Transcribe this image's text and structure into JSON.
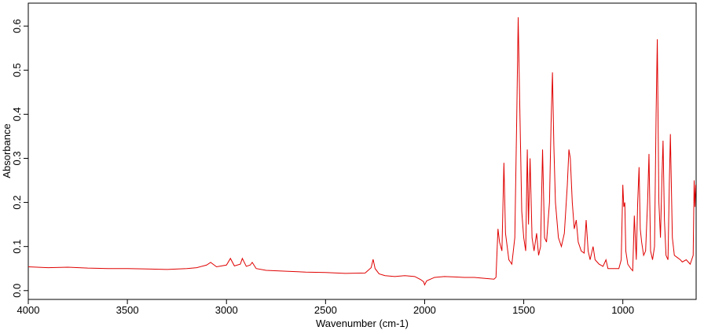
{
  "chart_data": {
    "type": "line",
    "xlabel": "Wavenumber (cm-1)",
    "ylabel": "Absorbance",
    "color": "#e00000",
    "xlim": [
      4000,
      630
    ],
    "ylim": [
      -0.02,
      0.652
    ],
    "xticks": [
      4000,
      3500,
      3000,
      2500,
      2000,
      1500,
      1000
    ],
    "yticks": [
      {
        "value": 0,
        "label": "0.0"
      },
      0.1,
      0.2,
      0.3,
      0.4,
      0.5,
      0.6
    ],
    "x": [
      4000,
      3900,
      3800,
      3700,
      3600,
      3500,
      3400,
      3300,
      3200,
      3150,
      3100,
      3080,
      3050,
      3000,
      2980,
      2960,
      2930,
      2920,
      2900,
      2880,
      2870,
      2850,
      2800,
      2700,
      2600,
      2500,
      2400,
      2300,
      2270,
      2260,
      2250,
      2230,
      2200,
      2150,
      2100,
      2050,
      2020,
      2005,
      2000,
      1990,
      1950,
      1900,
      1850,
      1800,
      1750,
      1700,
      1650,
      1640,
      1630,
      1622,
      1610,
      1600,
      1592,
      1575,
      1560,
      1545,
      1535,
      1528,
      1520,
      1510,
      1500,
      1490,
      1482,
      1476,
      1468,
      1458,
      1448,
      1435,
      1425,
      1415,
      1405,
      1395,
      1385,
      1370,
      1362,
      1355,
      1348,
      1340,
      1325,
      1310,
      1295,
      1280,
      1272,
      1265,
      1255,
      1245,
      1235,
      1225,
      1210,
      1195,
      1185,
      1175,
      1165,
      1150,
      1140,
      1120,
      1100,
      1085,
      1075,
      1060,
      1040,
      1020,
      1008,
      1000,
      995,
      990,
      985,
      975,
      960,
      950,
      942,
      937,
      932,
      925,
      918,
      912,
      905,
      895,
      885,
      875,
      868,
      860,
      850,
      840,
      832,
      826,
      818,
      810,
      803,
      797,
      790,
      782,
      772,
      765,
      760,
      750,
      740,
      725,
      710,
      700,
      680,
      660,
      645,
      640,
      636,
      632
    ],
    "values": [
      0.054,
      0.052,
      0.053,
      0.051,
      0.05,
      0.05,
      0.049,
      0.048,
      0.05,
      0.052,
      0.058,
      0.064,
      0.054,
      0.058,
      0.073,
      0.056,
      0.06,
      0.073,
      0.055,
      0.058,
      0.064,
      0.05,
      0.046,
      0.044,
      0.042,
      0.041,
      0.039,
      0.04,
      0.052,
      0.071,
      0.05,
      0.038,
      0.034,
      0.032,
      0.034,
      0.032,
      0.025,
      0.02,
      0.013,
      0.022,
      0.03,
      0.032,
      0.031,
      0.03,
      0.03,
      0.028,
      0.026,
      0.03,
      0.14,
      0.11,
      0.09,
      0.29,
      0.13,
      0.07,
      0.06,
      0.12,
      0.4,
      0.62,
      0.42,
      0.18,
      0.12,
      0.09,
      0.32,
      0.15,
      0.3,
      0.12,
      0.09,
      0.13,
      0.08,
      0.1,
      0.32,
      0.12,
      0.11,
      0.2,
      0.38,
      0.495,
      0.33,
      0.2,
      0.12,
      0.1,
      0.13,
      0.24,
      0.32,
      0.3,
      0.2,
      0.14,
      0.16,
      0.11,
      0.09,
      0.085,
      0.16,
      0.09,
      0.07,
      0.1,
      0.07,
      0.06,
      0.055,
      0.07,
      0.05,
      0.05,
      0.05,
      0.05,
      0.07,
      0.24,
      0.19,
      0.2,
      0.09,
      0.06,
      0.05,
      0.045,
      0.17,
      0.12,
      0.07,
      0.2,
      0.28,
      0.14,
      0.11,
      0.08,
      0.09,
      0.2,
      0.31,
      0.09,
      0.07,
      0.1,
      0.4,
      0.57,
      0.2,
      0.12,
      0.25,
      0.34,
      0.16,
      0.08,
      0.07,
      0.25,
      0.355,
      0.12,
      0.08,
      0.075,
      0.07,
      0.065,
      0.07,
      0.06,
      0.08,
      0.25,
      0.19,
      0.24
    ]
  }
}
